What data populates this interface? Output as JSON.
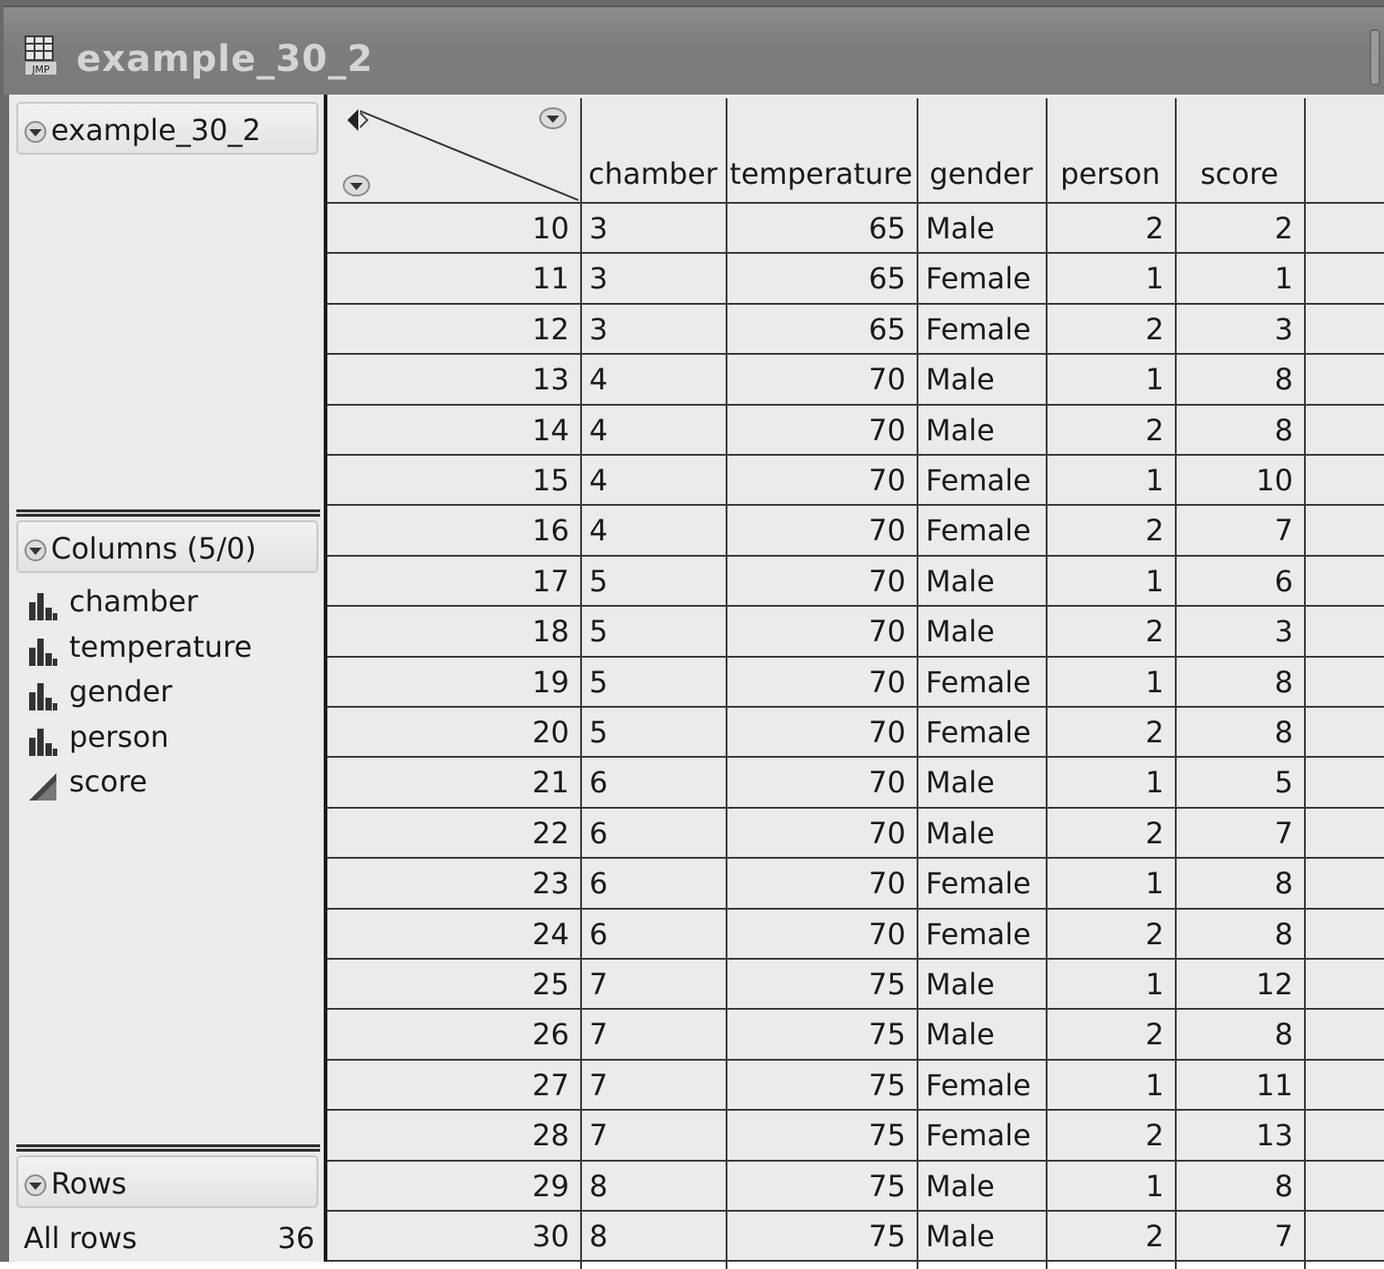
{
  "window": {
    "title": "example_30_2",
    "icon": "jmp-data-table-icon",
    "icon_text": "JMP"
  },
  "table_panel": {
    "title": "example_30_2"
  },
  "columns_panel": {
    "title": "Columns (5/0)",
    "items": [
      {
        "name": "chamber",
        "icon": "nominal-bar-icon"
      },
      {
        "name": "temperature",
        "icon": "nominal-bar-icon"
      },
      {
        "name": "gender",
        "icon": "nominal-bar-icon"
      },
      {
        "name": "person",
        "icon": "nominal-bar-icon"
      },
      {
        "name": "score",
        "icon": "continuous-triangle-icon"
      }
    ]
  },
  "rows_panel": {
    "title": "Rows",
    "all_rows_label": "All rows",
    "all_rows_count": "36"
  },
  "grid": {
    "headers": [
      "chamber",
      "temperature",
      "gender",
      "person",
      "score"
    ],
    "rows": [
      {
        "n": "10",
        "chamber": "3",
        "temperature": "65",
        "gender": "Male",
        "person": "2",
        "score": "2"
      },
      {
        "n": "11",
        "chamber": "3",
        "temperature": "65",
        "gender": "Female",
        "person": "1",
        "score": "1"
      },
      {
        "n": "12",
        "chamber": "3",
        "temperature": "65",
        "gender": "Female",
        "person": "2",
        "score": "3"
      },
      {
        "n": "13",
        "chamber": "4",
        "temperature": "70",
        "gender": "Male",
        "person": "1",
        "score": "8"
      },
      {
        "n": "14",
        "chamber": "4",
        "temperature": "70",
        "gender": "Male",
        "person": "2",
        "score": "8"
      },
      {
        "n": "15",
        "chamber": "4",
        "temperature": "70",
        "gender": "Female",
        "person": "1",
        "score": "10"
      },
      {
        "n": "16",
        "chamber": "4",
        "temperature": "70",
        "gender": "Female",
        "person": "2",
        "score": "7"
      },
      {
        "n": "17",
        "chamber": "5",
        "temperature": "70",
        "gender": "Male",
        "person": "1",
        "score": "6"
      },
      {
        "n": "18",
        "chamber": "5",
        "temperature": "70",
        "gender": "Male",
        "person": "2",
        "score": "3"
      },
      {
        "n": "19",
        "chamber": "5",
        "temperature": "70",
        "gender": "Female",
        "person": "1",
        "score": "8"
      },
      {
        "n": "20",
        "chamber": "5",
        "temperature": "70",
        "gender": "Female",
        "person": "2",
        "score": "8"
      },
      {
        "n": "21",
        "chamber": "6",
        "temperature": "70",
        "gender": "Male",
        "person": "1",
        "score": "5"
      },
      {
        "n": "22",
        "chamber": "6",
        "temperature": "70",
        "gender": "Male",
        "person": "2",
        "score": "7"
      },
      {
        "n": "23",
        "chamber": "6",
        "temperature": "70",
        "gender": "Female",
        "person": "1",
        "score": "8"
      },
      {
        "n": "24",
        "chamber": "6",
        "temperature": "70",
        "gender": "Female",
        "person": "2",
        "score": "8"
      },
      {
        "n": "25",
        "chamber": "7",
        "temperature": "75",
        "gender": "Male",
        "person": "1",
        "score": "12"
      },
      {
        "n": "26",
        "chamber": "7",
        "temperature": "75",
        "gender": "Male",
        "person": "2",
        "score": "8"
      },
      {
        "n": "27",
        "chamber": "7",
        "temperature": "75",
        "gender": "Female",
        "person": "1",
        "score": "11"
      },
      {
        "n": "28",
        "chamber": "7",
        "temperature": "75",
        "gender": "Female",
        "person": "2",
        "score": "13"
      },
      {
        "n": "29",
        "chamber": "8",
        "temperature": "75",
        "gender": "Male",
        "person": "1",
        "score": "8"
      },
      {
        "n": "30",
        "chamber": "8",
        "temperature": "75",
        "gender": "Male",
        "person": "2",
        "score": "7"
      }
    ]
  },
  "colors": {
    "title_bar": "#7d7d7d",
    "title_text": "#d4d4d4",
    "panel_bg": "#ebebeb",
    "grid_lines": "#3a3a3a",
    "text": "#1a1a1a"
  }
}
